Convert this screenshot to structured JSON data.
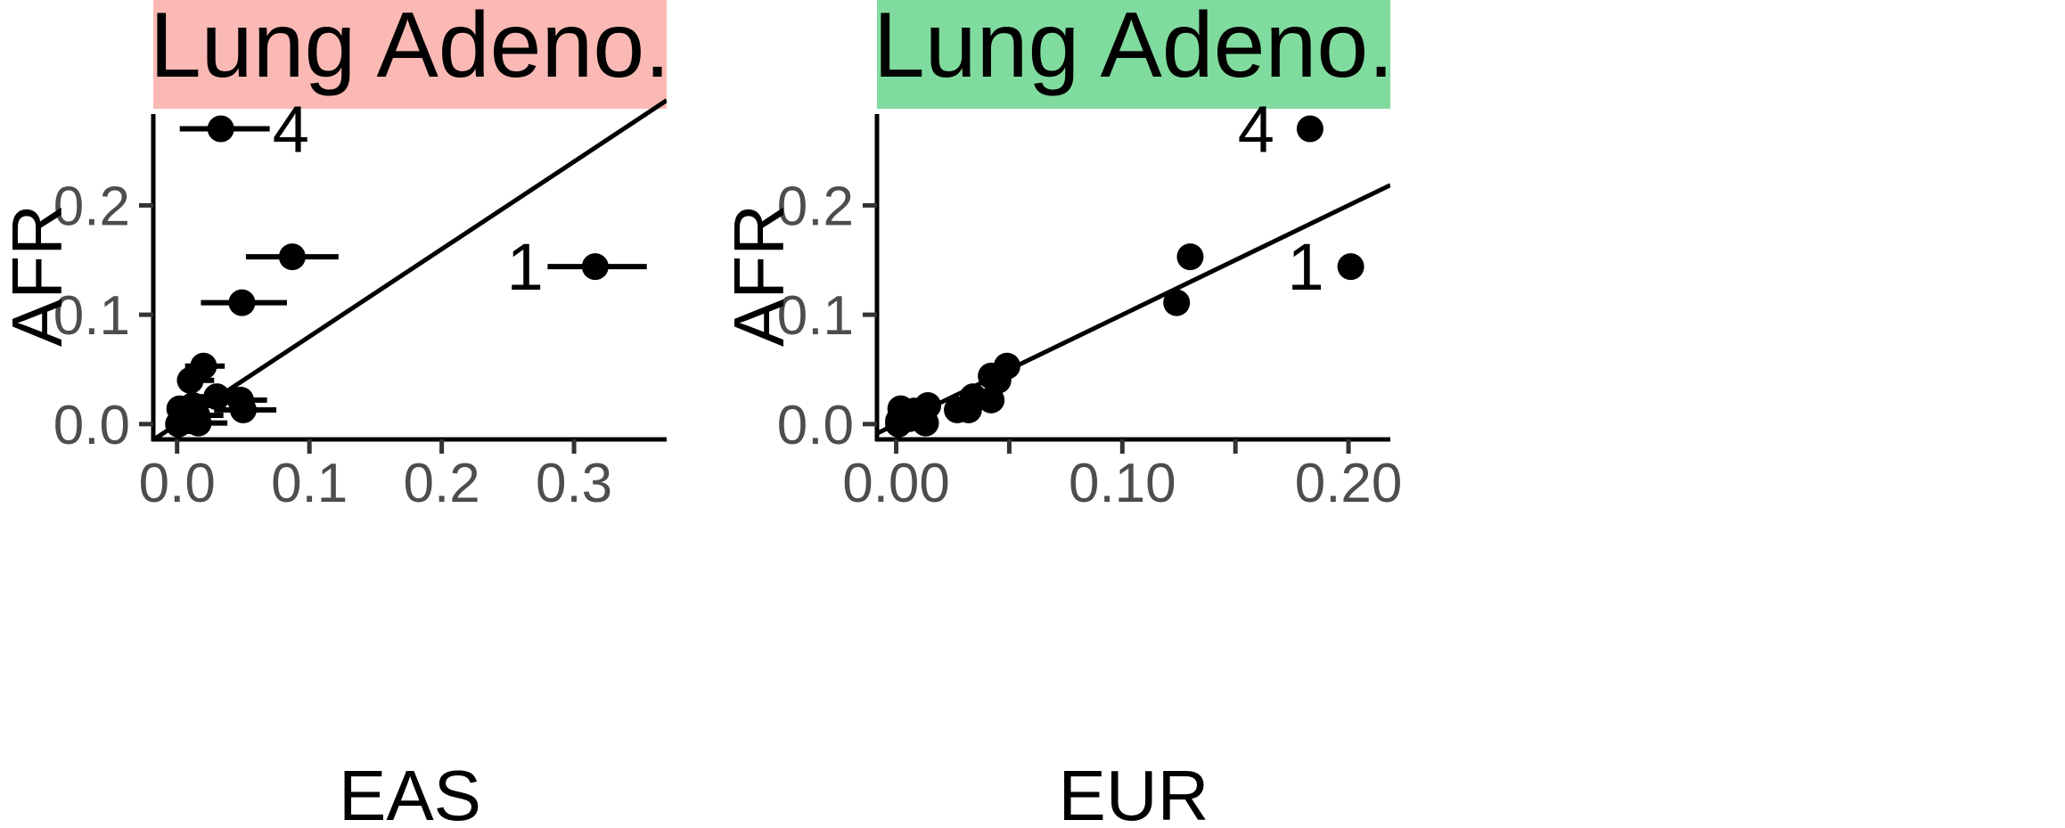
{
  "chart_data": [
    {
      "type": "scatter",
      "panel_title": "Lung Adeno.",
      "strip_color": "#fbb9b5",
      "xlabel": "EAS",
      "ylabel": "AFR",
      "xlim": [
        -0.018,
        0.37
      ],
      "ylim": [
        -0.014,
        0.29
      ],
      "xticks": [
        0.0,
        0.1,
        0.2,
        0.3
      ],
      "xtick_labels": [
        "0.0",
        "0.1",
        "0.2",
        "0.3"
      ],
      "yticks": [
        0.0,
        0.1,
        0.2
      ],
      "ytick_labels": [
        "0.0",
        "0.1",
        "0.2"
      ],
      "fit_line": {
        "intercept": 0.0,
        "slope": 0.8
      },
      "points": [
        {
          "x": 0.033,
          "y": 0.27,
          "xerr": [
            0.002,
            0.07
          ],
          "label": "4"
        },
        {
          "x": 0.316,
          "y": 0.144,
          "xerr": [
            0.28,
            0.355
          ],
          "label": "1"
        },
        {
          "x": 0.087,
          "y": 0.153,
          "xerr": [
            0.052,
            0.122
          ]
        },
        {
          "x": 0.049,
          "y": 0.111,
          "xerr": [
            0.018,
            0.083
          ]
        },
        {
          "x": 0.02,
          "y": 0.053,
          "xerr": [
            0.006,
            0.036
          ]
        },
        {
          "x": 0.01,
          "y": 0.04,
          "xerr": [
            0.0,
            0.028
          ]
        },
        {
          "x": 0.048,
          "y": 0.022,
          "xerr": [
            0.025,
            0.068
          ]
        },
        {
          "x": 0.05,
          "y": 0.013,
          "xerr": [
            0.028,
            0.075
          ]
        },
        {
          "x": 0.03,
          "y": 0.025,
          "xerr": [
            0.012,
            0.05
          ]
        },
        {
          "x": 0.012,
          "y": 0.017,
          "xerr": [
            0.0,
            0.03
          ]
        },
        {
          "x": 0.008,
          "y": 0.012,
          "xerr": [
            0.0,
            0.022
          ]
        },
        {
          "x": 0.015,
          "y": 0.008,
          "xerr": [
            0.0,
            0.035
          ]
        },
        {
          "x": 0.002,
          "y": 0.014,
          "xerr": [
            0.0,
            0.01
          ]
        },
        {
          "x": 0.004,
          "y": 0.004,
          "xerr": [
            0.0,
            0.014
          ]
        },
        {
          "x": 0.01,
          "y": 0.003,
          "xerr": [
            0.0,
            0.025
          ]
        },
        {
          "x": 0.016,
          "y": 0.001,
          "xerr": [
            0.0,
            0.038
          ]
        },
        {
          "x": 0.001,
          "y": 0.0,
          "xerr": [
            0.0,
            0.008
          ]
        }
      ]
    },
    {
      "type": "scatter",
      "panel_title": "Lung Adeno.",
      "strip_color": "#80dc9e",
      "xlabel": "EUR",
      "ylabel": "AFR",
      "xlim": [
        -0.0085,
        0.2185
      ],
      "ylim": [
        -0.014,
        0.29
      ],
      "xticks": [
        0.0,
        0.05,
        0.1,
        0.15,
        0.2
      ],
      "xtick_labels": [
        "0.00",
        "",
        "0.10",
        "",
        "0.20"
      ],
      "yticks": [
        0.0,
        0.1,
        0.2
      ],
      "ytick_labels": [
        "0.0",
        "0.1",
        "0.2"
      ],
      "fit_line": {
        "intercept": 0.0,
        "slope": 1.0
      },
      "points": [
        {
          "x": 0.183,
          "y": 0.27,
          "label": "4"
        },
        {
          "x": 0.201,
          "y": 0.144,
          "label": "1"
        },
        {
          "x": 0.13,
          "y": 0.153
        },
        {
          "x": 0.124,
          "y": 0.111
        },
        {
          "x": 0.049,
          "y": 0.053
        },
        {
          "x": 0.045,
          "y": 0.04
        },
        {
          "x": 0.042,
          "y": 0.044
        },
        {
          "x": 0.042,
          "y": 0.022
        },
        {
          "x": 0.034,
          "y": 0.025
        },
        {
          "x": 0.032,
          "y": 0.013
        },
        {
          "x": 0.027,
          "y": 0.013
        },
        {
          "x": 0.014,
          "y": 0.017
        },
        {
          "x": 0.013,
          "y": 0.001
        },
        {
          "x": 0.008,
          "y": 0.012
        },
        {
          "x": 0.006,
          "y": 0.005
        },
        {
          "x": 0.002,
          "y": 0.014
        },
        {
          "x": 0.001,
          "y": 0.003
        },
        {
          "x": 0.001,
          "y": 0.0
        }
      ]
    }
  ]
}
